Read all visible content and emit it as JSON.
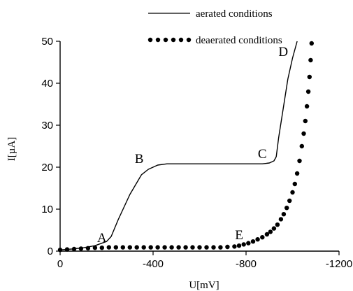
{
  "chart_data": {
    "type": "line",
    "xlabel": "U[mV]",
    "ylabel": "I[µA]",
    "xlim": [
      0,
      -1200
    ],
    "ylim": [
      0,
      50
    ],
    "x_ticks": [
      0,
      -400,
      -800,
      -1200
    ],
    "x_tick_labels": [
      "0",
      "-400",
      "-800",
      "-1200"
    ],
    "y_ticks": [
      0,
      10,
      20,
      30,
      40,
      50
    ],
    "y_tick_labels": [
      "0",
      "10",
      "20",
      "30",
      "40",
      "50"
    ],
    "grid": false,
    "legend_position": "top-left",
    "series": [
      {
        "name": "aerated conditions",
        "style": "solid-line",
        "color": "#000000",
        "x": [
          0,
          -50,
          -100,
          -150,
          -200,
          -220,
          -250,
          -300,
          -350,
          -380,
          -420,
          -460,
          -500,
          -600,
          -700,
          -800,
          -870,
          -900,
          -920,
          -930,
          -940,
          -960,
          -980,
          -1000,
          -1020
        ],
        "y": [
          0.3,
          0.5,
          0.8,
          1.3,
          2.3,
          3.5,
          7.5,
          13.5,
          18.2,
          19.5,
          20.5,
          20.8,
          20.8,
          20.8,
          20.8,
          20.8,
          20.8,
          21.0,
          21.5,
          22.5,
          27,
          34,
          41,
          46,
          50
        ]
      },
      {
        "name": "deaerated conditions",
        "style": "dotted",
        "color": "#000000",
        "x": [
          0,
          -30,
          -60,
          -90,
          -120,
          -150,
          -180,
          -210,
          -240,
          -270,
          -300,
          -330,
          -360,
          -390,
          -420,
          -450,
          -480,
          -510,
          -540,
          -570,
          -600,
          -630,
          -660,
          -690,
          -720,
          -750,
          -770,
          -790,
          -810,
          -830,
          -850,
          -870,
          -890,
          -905,
          -920,
          -935,
          -950,
          -962,
          -975,
          -987,
          -1000,
          -1010,
          -1020,
          -1030,
          -1040,
          -1048,
          -1055,
          -1062,
          -1068,
          -1073,
          -1078,
          -1082
        ],
        "y": [
          0.3,
          0.4,
          0.5,
          0.6,
          0.7,
          0.8,
          0.8,
          0.9,
          0.9,
          0.9,
          0.9,
          0.9,
          0.9,
          0.9,
          0.9,
          0.9,
          0.9,
          0.9,
          0.9,
          0.9,
          0.9,
          0.9,
          0.9,
          0.9,
          1.0,
          1.1,
          1.3,
          1.6,
          1.9,
          2.3,
          2.8,
          3.3,
          4.0,
          4.6,
          5.4,
          6.3,
          7.6,
          8.8,
          10.3,
          12.0,
          14.0,
          16.0,
          18.5,
          21.5,
          25.0,
          28.0,
          31.0,
          34.5,
          38.0,
          41.5,
          45.5,
          49.5
        ]
      }
    ],
    "annotations": [
      {
        "text": "A",
        "x": -180,
        "y": 2.2
      },
      {
        "text": "B",
        "x": -340,
        "y": 21.0
      },
      {
        "text": "C",
        "x": -870,
        "y": 22.2
      },
      {
        "text": "D",
        "x": -960,
        "y": 46.5
      },
      {
        "text": "E",
        "x": -770,
        "y": 2.8
      }
    ]
  }
}
